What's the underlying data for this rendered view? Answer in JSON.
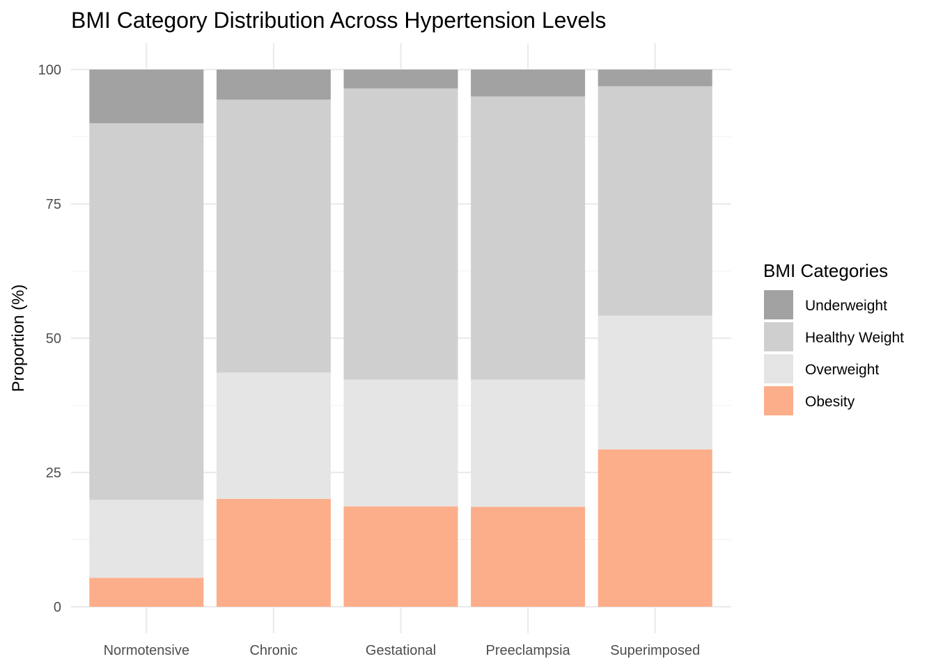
{
  "chart_data": {
    "type": "bar",
    "stacked": true,
    "title": "BMI Category Distribution Across Hypertension Levels",
    "xlabel": "",
    "ylabel": "Proportion (%)",
    "ylim": [
      0,
      100
    ],
    "yticks": [
      0,
      25,
      50,
      75,
      100
    ],
    "grid": true,
    "legend_position": "right",
    "legend_title": "BMI Categories",
    "categories": [
      "Normotensive",
      "Chronic",
      "Gestational",
      "Preeclampsia",
      "Superimposed"
    ],
    "series": [
      {
        "name": "Obesity",
        "color": "#FCAE8A",
        "values": [
          5.4,
          20.1,
          18.7,
          18.6,
          29.3
        ]
      },
      {
        "name": "Overweight",
        "color": "#E5E5E5",
        "values": [
          14.5,
          23.5,
          23.6,
          23.7,
          24.9
        ]
      },
      {
        "name": "Healthy Weight",
        "color": "#CFCFCF",
        "values": [
          70.1,
          50.8,
          54.2,
          52.7,
          42.7
        ]
      },
      {
        "name": "Underweight",
        "color": "#A2A2A2",
        "values": [
          10.0,
          5.6,
          3.5,
          5.0,
          3.1
        ]
      }
    ],
    "legend_order": [
      "Underweight",
      "Healthy Weight",
      "Overweight",
      "Obesity"
    ]
  }
}
